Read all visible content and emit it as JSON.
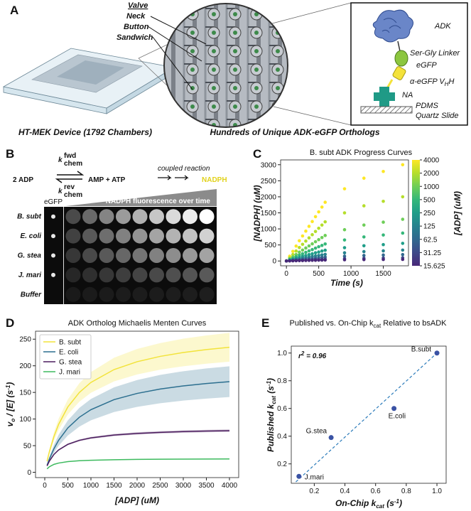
{
  "panel_labels": [
    "A",
    "B",
    "C",
    "D",
    "E"
  ],
  "panel_a": {
    "device_caption": "HT-MEK Device (1792 Chambers)",
    "zoom_labels": [
      "Valve",
      "Neck",
      "Button",
      "Sandwich"
    ],
    "zoom_caption": "Hundreds of Unique ADK-eGFP Orthologs",
    "construct": {
      "adk": "ADK",
      "linker": "Ser-Gly Linker",
      "egfp": "eGFP",
      "nanobody": [
        "α-eGFP V",
        "H",
        "H"
      ],
      "na": "NA",
      "pdms": "PDMS",
      "slide": "Quartz Slide"
    }
  },
  "panel_b": {
    "substrate": "2 ADP",
    "k_fwd": [
      "k",
      "fwd",
      "chem"
    ],
    "k_rev": [
      "k",
      "rev",
      "chem"
    ],
    "products": "AMP + ATP",
    "coupled": "coupled reaction",
    "readout": "NADPH",
    "egfp": "eGFP",
    "timecourse": "NADPH fluorescence over time",
    "rows": [
      "B. subt",
      "E. coli",
      "G. stea",
      "J. mari",
      "Buffer"
    ]
  },
  "chart_data": [
    {
      "type": "scatter",
      "title": "B. subt ADK Progress Curves",
      "x_label": "Time (s)",
      "y_label": "[NADPH] (uM)",
      "colorbar_label": "[ADP] (uM)",
      "x": [
        0,
        50,
        100,
        150,
        200,
        250,
        300,
        350,
        400,
        450,
        500,
        550,
        600,
        900,
        1200,
        1500,
        1800
      ],
      "series": [
        {
          "name": "4000",
          "color": "#fde725",
          "values": [
            0,
            150,
            300,
            465,
            630,
            780,
            930,
            1080,
            1230,
            1380,
            1530,
            1680,
            1830,
            2250,
            2580,
            2790,
            3000
          ]
        },
        {
          "name": "2000",
          "color": "#b5de2b",
          "values": [
            0,
            100,
            200,
            310,
            420,
            520,
            620,
            720,
            820,
            920,
            1020,
            1120,
            1220,
            1500,
            1720,
            1860,
            2000
          ]
        },
        {
          "name": "1000",
          "color": "#6ece58",
          "values": [
            0,
            65,
            130,
            200,
            275,
            340,
            405,
            470,
            535,
            600,
            665,
            730,
            795,
            975,
            1120,
            1210,
            1300
          ]
        },
        {
          "name": "500",
          "color": "#35b779",
          "values": [
            0,
            45,
            85,
            135,
            185,
            225,
            270,
            315,
            355,
            400,
            445,
            485,
            530,
            655,
            750,
            810,
            870
          ]
        },
        {
          "name": "250",
          "color": "#1f9e89",
          "values": [
            0,
            28,
            55,
            85,
            115,
            145,
            170,
            200,
            225,
            255,
            280,
            310,
            335,
            415,
            475,
            510,
            550
          ]
        },
        {
          "name": "125",
          "color": "#26828e",
          "values": [
            0,
            17,
            34,
            53,
            71,
            88,
            105,
            122,
            140,
            156,
            173,
            190,
            207,
            255,
            292,
            316,
            340
          ]
        },
        {
          "name": "62.5",
          "color": "#31688e",
          "values": [
            0,
            10,
            20,
            31,
            42,
            52,
            62,
            72,
            82,
            92,
            102,
            112,
            122,
            150,
            172,
            186,
            200
          ]
        },
        {
          "name": "31.25",
          "color": "#3e4989",
          "values": [
            0,
            5,
            10,
            16,
            21,
            26,
            31,
            36,
            41,
            46,
            51,
            56,
            61,
            75,
            86,
            93,
            100
          ]
        },
        {
          "name": "15.625",
          "color": "#482878",
          "values": [
            0,
            3,
            5,
            8,
            11,
            13,
            16,
            18,
            21,
            23,
            26,
            28,
            31,
            38,
            43,
            47,
            50
          ]
        }
      ],
      "xlim": [
        -90,
        1890
      ],
      "ylim": [
        -150,
        3150
      ],
      "xticks": [
        0,
        500,
        1000,
        1500
      ],
      "yticks": [
        0,
        500,
        1000,
        1500,
        2000,
        2500,
        3000
      ]
    },
    {
      "type": "line",
      "title": "ADK Ortholog Michaelis Menten Curves",
      "x_label": "[ADP] (uM)",
      "y_label": [
        "v",
        "o",
        " / [E] (s",
        "-1",
        ")"
      ],
      "x": [
        50,
        100,
        200,
        300,
        500,
        750,
        1000,
        1500,
        2000,
        2500,
        3000,
        3500,
        4000
      ],
      "series": [
        {
          "name": "B. subt",
          "color": "#f2e33a",
          "values": [
            20.8,
            38.6,
            67.5,
            90,
            122.7,
            150,
            168.8,
            192.9,
            207.7,
            217.7,
            225,
            230.5,
            234.8
          ],
          "error": [
            2.4,
            4.4,
            7.8,
            10.4,
            14.1,
            17.3,
            19.4,
            22.2,
            23.9,
            25,
            25.9,
            26.5,
            27
          ]
        },
        {
          "name": "E. coli",
          "color": "#2c6f8f",
          "values": [
            13.3,
            25,
            44.4,
            60,
            83.3,
            103.4,
            117.6,
            136.4,
            148.1,
            156.3,
            162.2,
            166.7,
            170.2
          ],
          "error": [
            2.3,
            4.3,
            7.5,
            10.2,
            14.2,
            17.6,
            20,
            23.2,
            25.2,
            26.6,
            27.6,
            28.3,
            28.9
          ]
        },
        {
          "name": "G. stea",
          "color": "#4b1d5e",
          "values": [
            12,
            21,
            33.6,
            42,
            52.5,
            60,
            64.6,
            70,
            73,
            75,
            76.4,
            77.4,
            78.1
          ],
          "error": [
            0.4,
            0.6,
            1,
            1.3,
            1.6,
            1.8,
            1.9,
            2.1,
            2.2,
            2.3,
            2.3,
            2.3,
            2.3
          ]
        },
        {
          "name": "J. mari",
          "color": "#3dba5e",
          "values": [
            6.5,
            10.4,
            14.9,
            17.3,
            20,
            21.7,
            22.6,
            23.6,
            24.2,
            24.5,
            24.7,
            24.9,
            25
          ],
          "error": [
            0.2,
            0.3,
            0.4,
            0.5,
            0.5,
            0.6,
            0.6,
            0.6,
            0.6,
            0.6,
            0.6,
            0.6,
            0.6
          ]
        }
      ],
      "xlim": [
        -200,
        4200
      ],
      "ylim": [
        -10,
        265
      ],
      "xticks": [
        0,
        500,
        1000,
        1500,
        2000,
        2500,
        3000,
        3500,
        4000
      ],
      "yticks": [
        0,
        50,
        100,
        150,
        200,
        250
      ],
      "legend": "upper left"
    },
    {
      "type": "scatter",
      "title": [
        "Published vs. On-Chip k",
        "cat",
        " Relative to bsADK"
      ],
      "x_label": [
        "On-Chip k",
        "cat",
        " (s",
        "-1",
        ")"
      ],
      "y_label": [
        "Published k",
        "cat",
        " (s",
        "-1",
        ")"
      ],
      "annotation": [
        "r",
        "2",
        " = 0.96"
      ],
      "x": [
        1.0,
        0.72,
        0.31,
        0.1
      ],
      "values": [
        1.0,
        0.6,
        0.39,
        0.11
      ],
      "labels": [
        "B.subt",
        "E.coli",
        "G.stea",
        "J.mari"
      ],
      "color": "#3a52a4",
      "fit_line": {
        "x": [
          0.08,
          1.0
        ],
        "y": [
          0.07,
          1.0
        ]
      },
      "xlim": [
        0.05,
        1.06
      ],
      "ylim": [
        0.06,
        1.05
      ],
      "xticks": [
        0.2,
        0.4,
        0.6,
        0.8,
        {
          "value": 1,
          "label": "1.0"
        }
      ],
      "yticks": [
        0.2,
        0.4,
        0.6,
        0.8,
        {
          "value": 1,
          "label": "1.0"
        }
      ]
    }
  ]
}
